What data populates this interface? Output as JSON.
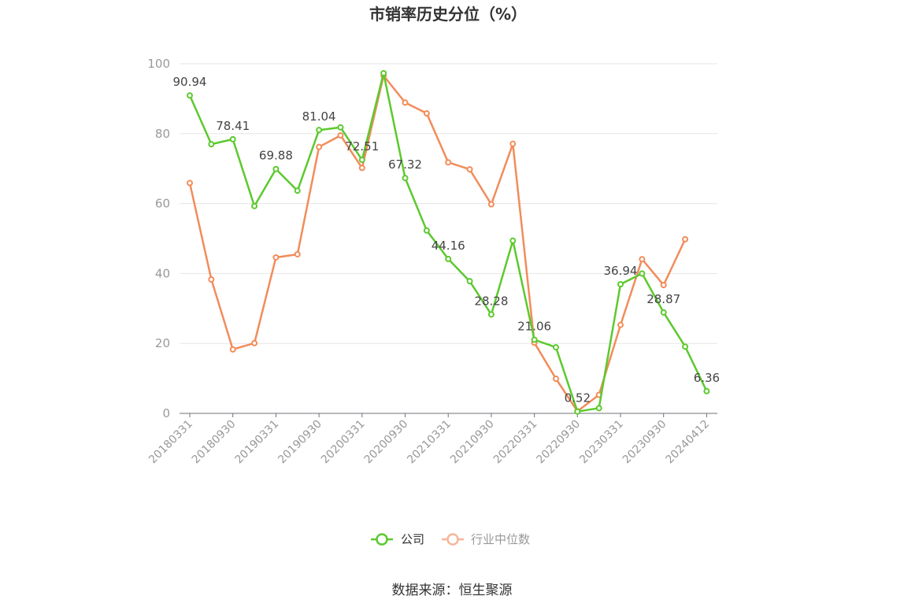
{
  "chart_data": {
    "type": "line",
    "title": "市销率历史分位（%）",
    "source": "数据来源：恒生聚源",
    "ylim": [
      0,
      100
    ],
    "yticks": [
      0,
      20,
      40,
      60,
      80,
      100
    ],
    "x_tick_labels": [
      "20180331",
      "20180930",
      "20190331",
      "20190930",
      "20200331",
      "20200930",
      "20210331",
      "20210930",
      "20220331",
      "20220930",
      "20230331",
      "20230930",
      "20240412"
    ],
    "series": [
      {
        "name": "公司",
        "color": "#5cc92e",
        "values": [
          90.94,
          77.0,
          78.41,
          59.3,
          69.88,
          63.7,
          81.04,
          81.8,
          72.51,
          97.3,
          67.32,
          52.3,
          44.16,
          37.8,
          28.28,
          49.4,
          21.06,
          18.9,
          0.52,
          1.5,
          36.94,
          40.0,
          28.87,
          19.1,
          6.36
        ],
        "labels": [
          "90.94",
          "",
          "78.41",
          "",
          "69.88",
          "",
          "81.04",
          "",
          "72.51",
          "",
          "67.32",
          "",
          "44.16",
          "",
          "28.28",
          "",
          "21.06",
          "",
          "0.52",
          "",
          "36.94",
          "",
          "28.87",
          "",
          "6.36"
        ]
      },
      {
        "name": "行业中位数",
        "color": "#f28c5a",
        "values": [
          65.9,
          38.3,
          18.3,
          20.1,
          44.6,
          45.5,
          76.2,
          79.5,
          70.2,
          96.6,
          88.9,
          85.8,
          71.8,
          69.8,
          59.8,
          77.1,
          20.2,
          9.9,
          0.6,
          5.3,
          25.3,
          44.1,
          36.7,
          49.8,
          null
        ]
      }
    ],
    "legend": {
      "position": "bottom-center"
    }
  }
}
